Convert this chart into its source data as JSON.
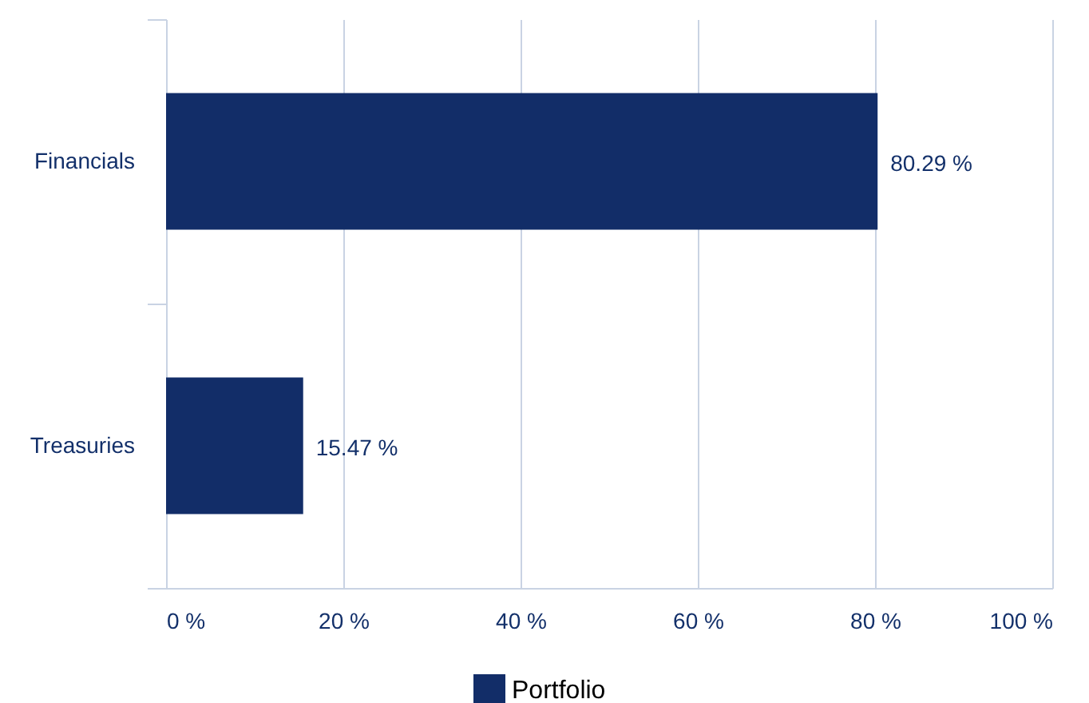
{
  "chart_data": {
    "type": "bar",
    "orientation": "horizontal",
    "categories": [
      "Financials",
      "Treasuries"
    ],
    "series": [
      {
        "name": "Portfolio",
        "color": "#122d68",
        "values": [
          80.29,
          15.47
        ],
        "value_labels": [
          "80.29 %",
          "15.47 %"
        ]
      }
    ],
    "xlim": [
      0,
      100
    ],
    "xticks": [
      {
        "value": 0,
        "label": "0 %"
      },
      {
        "value": 20,
        "label": "20 %"
      },
      {
        "value": 40,
        "label": "40 %"
      },
      {
        "value": 60,
        "label": "60 %"
      },
      {
        "value": 80,
        "label": "80 %"
      },
      {
        "value": 100,
        "label": "100 %"
      }
    ],
    "grid": "x",
    "legend": "bottom"
  }
}
